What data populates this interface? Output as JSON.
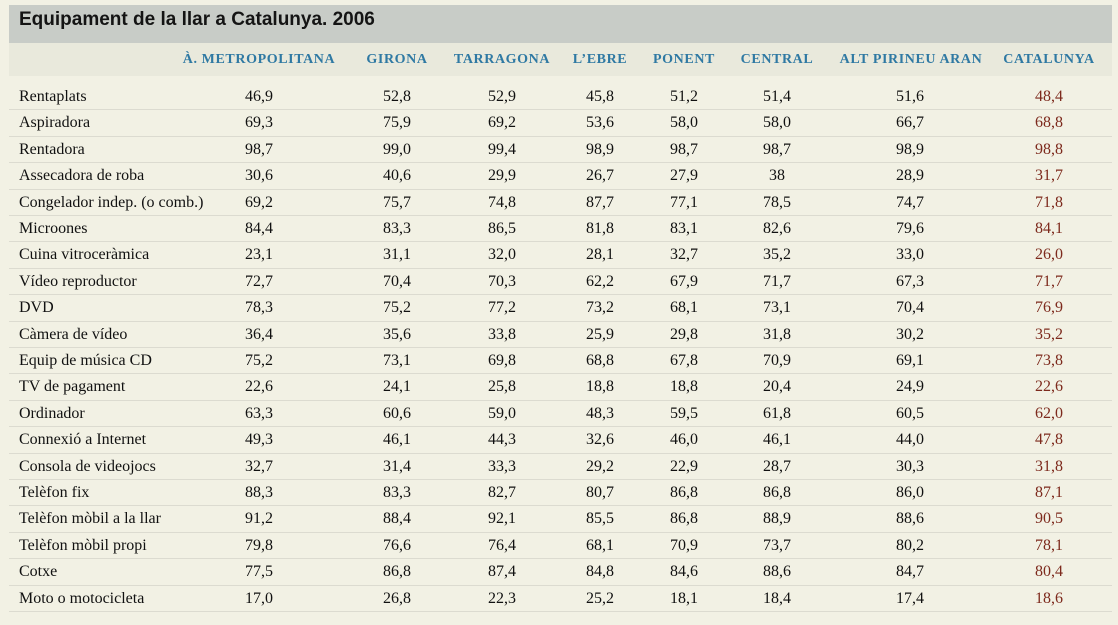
{
  "chart_data": {
    "type": "table",
    "title": "Equipament de la llar a Catalunya. 2006",
    "columns": [
      "À. METROPOLITANA",
      "GIRONA",
      "TARRAGONA",
      "L’EBRE",
      "PONENT",
      "CENTRAL",
      "ALT PIRINEU ARAN",
      "CATALUNYA"
    ],
    "rows": [
      {
        "label": "Rentaplats",
        "values": [
          "46,9",
          "52,8",
          "52,9",
          "45,8",
          "51,2",
          "51,4",
          "51,6",
          "48,4"
        ]
      },
      {
        "label": "Aspiradora",
        "values": [
          "69,3",
          "75,9",
          "69,2",
          "53,6",
          "58,0",
          "58,0",
          "66,7",
          "68,8"
        ]
      },
      {
        "label": "Rentadora",
        "values": [
          "98,7",
          "99,0",
          "99,4",
          "98,9",
          "98,7",
          "98,7",
          "98,9",
          "98,8"
        ]
      },
      {
        "label": "Assecadora de roba",
        "values": [
          "30,6",
          "40,6",
          "29,9",
          "26,7",
          "27,9",
          "38",
          "28,9",
          "31,7"
        ]
      },
      {
        "label": "Congelador indep. (o comb.)",
        "values": [
          "69,2",
          "75,7",
          "74,8",
          "87,7",
          "77,1",
          "78,5",
          "74,7",
          "71,8"
        ]
      },
      {
        "label": "Microones",
        "values": [
          "84,4",
          "83,3",
          "86,5",
          "81,8",
          "83,1",
          "82,6",
          "79,6",
          "84,1"
        ]
      },
      {
        "label": "Cuina vitroceràmica",
        "values": [
          "23,1",
          "31,1",
          "32,0",
          "28,1",
          "32,7",
          "35,2",
          "33,0",
          "26,0"
        ]
      },
      {
        "label": "Vídeo reproductor",
        "values": [
          "72,7",
          "70,4",
          "70,3",
          "62,2",
          "67,9",
          "71,7",
          "67,3",
          "71,7"
        ]
      },
      {
        "label": "DVD",
        "values": [
          "78,3",
          "75,2",
          "77,2",
          "73,2",
          "68,1",
          "73,1",
          "70,4",
          "76,9"
        ]
      },
      {
        "label": "Càmera de vídeo",
        "values": [
          "36,4",
          "35,6",
          "33,8",
          "25,9",
          "29,8",
          "31,8",
          "30,2",
          "35,2"
        ]
      },
      {
        "label": "Equip de música CD",
        "values": [
          "75,2",
          "73,1",
          "69,8",
          "68,8",
          "67,8",
          "70,9",
          "69,1",
          "73,8"
        ]
      },
      {
        "label": "TV de pagament",
        "values": [
          "22,6",
          "24,1",
          "25,8",
          "18,8",
          "18,8",
          "20,4",
          "24,9",
          "22,6"
        ]
      },
      {
        "label": "Ordinador",
        "values": [
          "63,3",
          "60,6",
          "59,0",
          "48,3",
          "59,5",
          "61,8",
          "60,5",
          "62,0"
        ]
      },
      {
        "label": "Connexió a Internet",
        "values": [
          "49,3",
          "46,1",
          "44,3",
          "32,6",
          "46,0",
          "46,1",
          "44,0",
          "47,8"
        ]
      },
      {
        "label": "Consola de videojocs",
        "values": [
          "32,7",
          "31,4",
          "33,3",
          "29,2",
          "22,9",
          "28,7",
          "30,3",
          "31,8"
        ]
      },
      {
        "label": "Telèfon fix",
        "values": [
          "88,3",
          "83,3",
          "82,7",
          "80,7",
          "86,8",
          "86,8",
          "86,0",
          "87,1"
        ]
      },
      {
        "label": "Telèfon mòbil a la llar",
        "values": [
          "91,2",
          "88,4",
          "92,1",
          "85,5",
          "86,8",
          "88,9",
          "88,6",
          "90,5"
        ]
      },
      {
        "label": "Telèfon mòbil propi",
        "values": [
          "79,8",
          "76,6",
          "76,4",
          "68,1",
          "70,9",
          "73,7",
          "80,2",
          "78,1"
        ]
      },
      {
        "label": "Cotxe",
        "values": [
          "77,5",
          "86,8",
          "87,4",
          "84,8",
          "84,6",
          "88,6",
          "84,7",
          "80,4"
        ]
      },
      {
        "label": "Moto o motocicleta",
        "values": [
          "17,0",
          "26,8",
          "22,3",
          "25,2",
          "18,1",
          "18,4",
          "17,4",
          "18,6"
        ]
      }
    ]
  },
  "colors": {
    "header_text": "#2f79a3",
    "total_text": "#7d2a1d",
    "title_bar": "#c8ccc7",
    "background": "#f2f1e4"
  }
}
